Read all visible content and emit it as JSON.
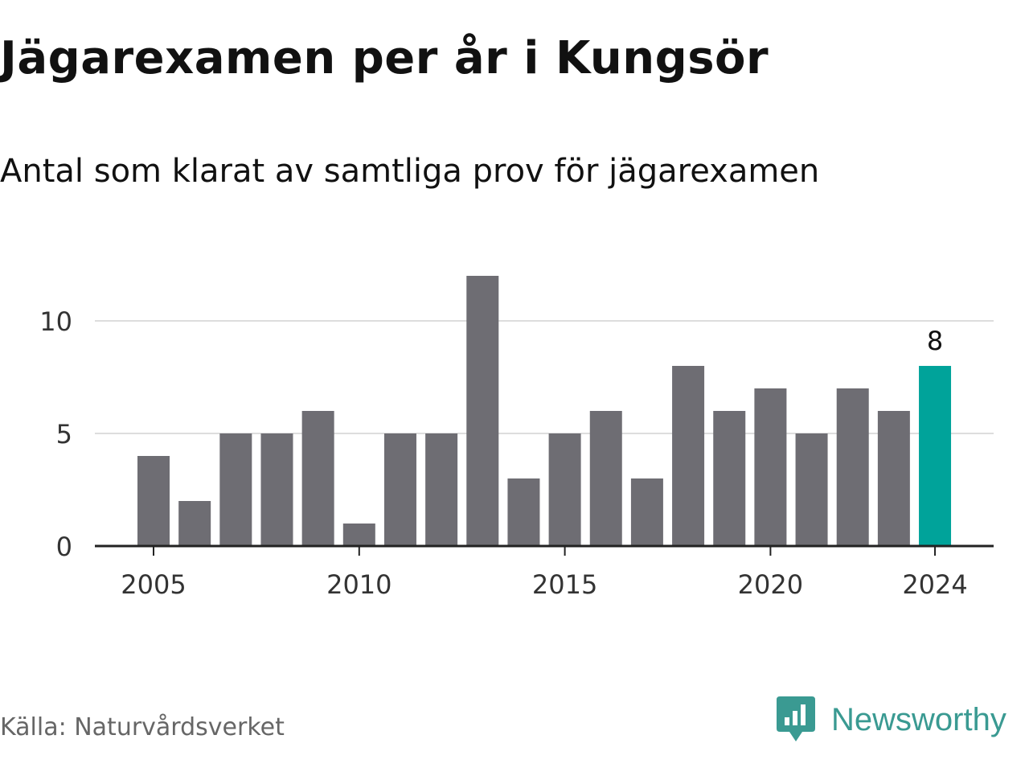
{
  "chart_data": {
    "type": "bar",
    "title": "Jägarexamen per år i Kungsör",
    "subtitle": "Antal som klarat av samtliga prov för jägarexamen",
    "categories": [
      2005,
      2006,
      2007,
      2008,
      2009,
      2010,
      2011,
      2012,
      2013,
      2014,
      2015,
      2016,
      2017,
      2018,
      2019,
      2020,
      2021,
      2022,
      2023,
      2024
    ],
    "values": [
      4,
      2,
      5,
      5,
      6,
      1,
      5,
      5,
      12,
      3,
      5,
      6,
      3,
      8,
      6,
      7,
      5,
      7,
      6,
      8
    ],
    "ylim": [
      0,
      12
    ],
    "yticks": [
      0,
      5,
      10
    ],
    "xticks": [
      2005,
      2010,
      2015,
      2020,
      2024
    ],
    "highlight": {
      "category": 2024,
      "label": "8"
    },
    "grid": true,
    "colors": {
      "bar": "#6e6d73",
      "highlight": "#00a39a",
      "grid": "#dddddd",
      "axis": "#222222",
      "text": "#333333"
    }
  },
  "footer": {
    "source": "Källa: Naturvårdsverket",
    "brand": "Newsworthy",
    "brand_icon": "newsworthy-logo-icon",
    "brand_color": "#3a9a92"
  }
}
